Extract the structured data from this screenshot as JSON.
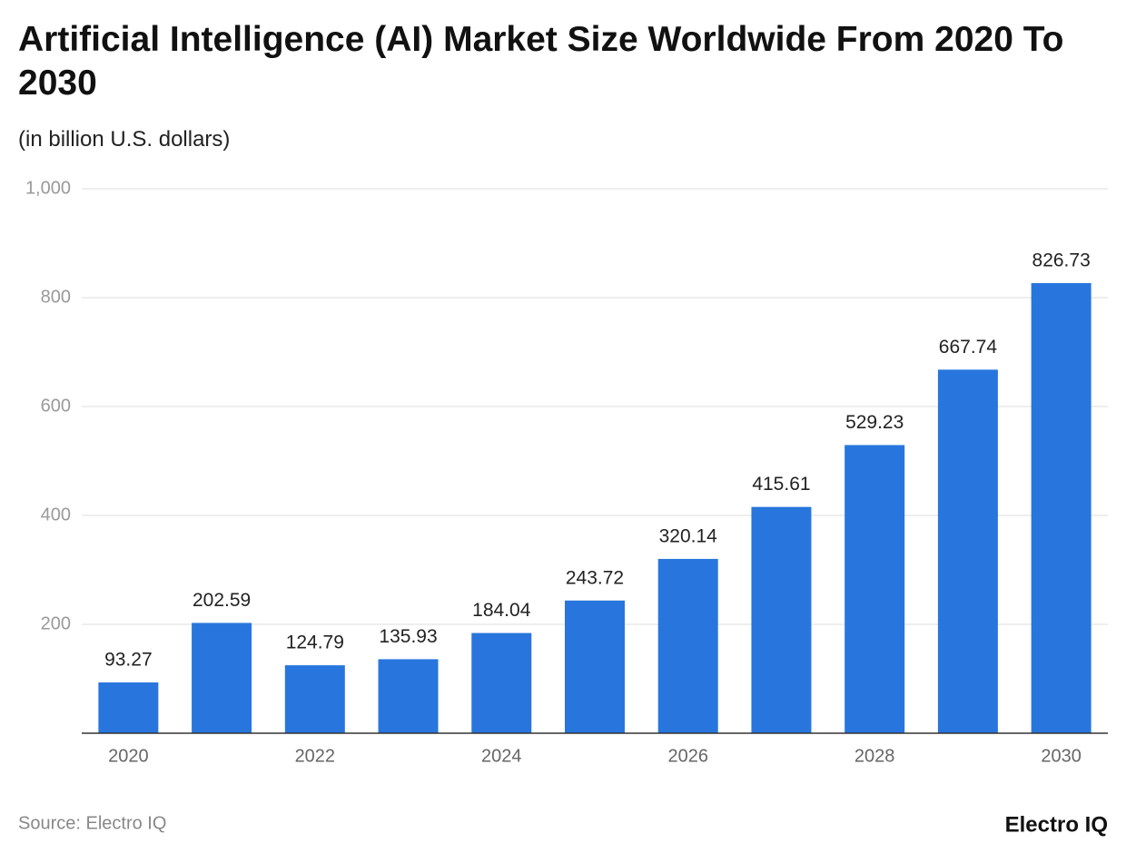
{
  "chart_data": {
    "type": "bar",
    "title": "Artificial Intelligence (AI) Market Size Worldwide From 2020 To 2030",
    "subtitle": "(in billion U.S. dollars)",
    "categories": [
      "2020",
      null,
      "2022",
      null,
      "2024",
      null,
      "2026",
      null,
      "2028",
      null,
      "2030"
    ],
    "values": [
      93.27,
      202.59,
      124.79,
      135.93,
      184.04,
      243.72,
      320.14,
      415.61,
      529.23,
      667.74,
      826.73
    ],
    "color": "#2876dd",
    "ylim": [
      0,
      1000
    ],
    "yticks": [
      200,
      400,
      600,
      800,
      {
        "value": 1000,
        "label": "1,000"
      }
    ],
    "grid": true,
    "source": "Source: Electro IQ",
    "brand": "Electro IQ"
  }
}
